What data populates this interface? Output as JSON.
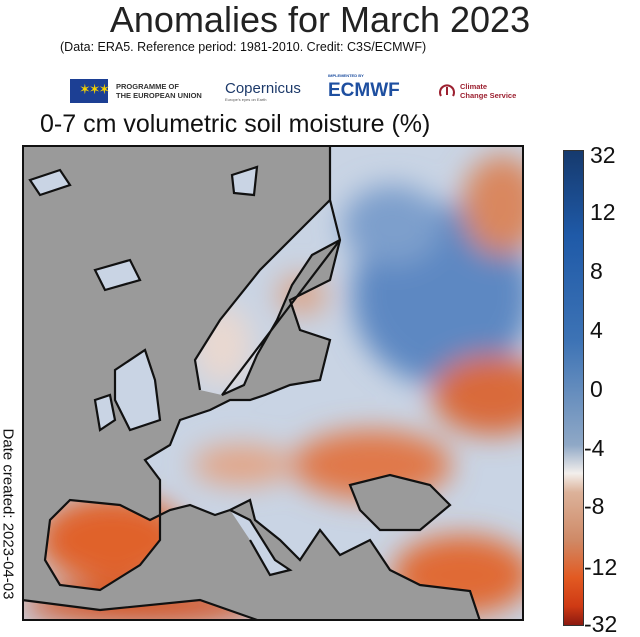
{
  "title": "Anomalies for March 2023",
  "subtitle": "(Data: ERA5.  Reference period: 1981-2010.  Credit: C3S/ECMWF)",
  "logos": {
    "eu_line1": "PROGRAMME OF",
    "eu_line2": "THE EUROPEAN UNION",
    "copernicus": "Copernicus",
    "copernicus_tagline": "Europe's eyes on Earth",
    "ecmwf_prefix": "IMPLEMENTED BY",
    "ecmwf": "ECMWF",
    "c3s_line1": "Climate",
    "c3s_line2": "Change Service"
  },
  "map_title": "0-7 cm volumetric soil moisture (%)",
  "colorbar": {
    "ticks": [
      "32",
      "12",
      "8",
      "4",
      "0",
      "-4",
      "-8",
      "-12",
      "-32"
    ],
    "colors": {
      "high": "#163a6e",
      "mid": "#f3efec",
      "low": "#8c1a10"
    }
  },
  "date_created": "Date created: 2023-04-03"
}
